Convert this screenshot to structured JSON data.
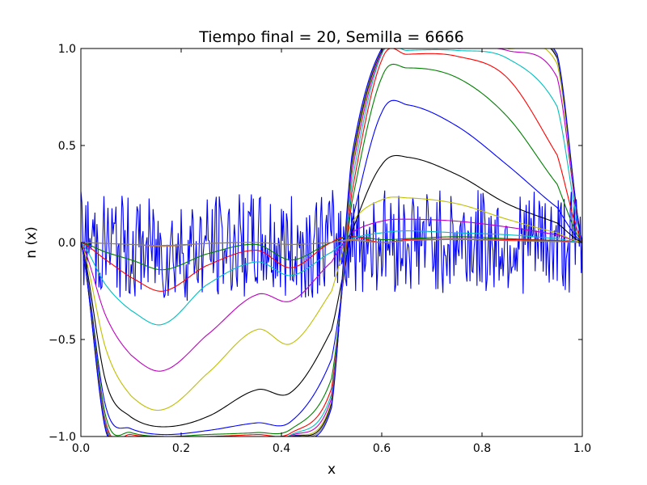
{
  "chart_data": {
    "type": "line",
    "title": "Tiempo final = 20, Semilla = 6666",
    "xlabel": "x",
    "ylabel": "n (x)",
    "xlim": [
      0.0,
      1.0
    ],
    "ylim": [
      -1.0,
      1.0
    ],
    "grid": false,
    "xticks": [
      "0.0",
      "0.2",
      "0.4",
      "0.6",
      "0.8",
      "1.0"
    ],
    "yticks": [
      "−1.0",
      "−0.5",
      "0.0",
      "0.5",
      "1.0"
    ],
    "x": [
      0.0,
      0.05,
      0.1,
      0.165,
      0.25,
      0.35,
      0.42,
      0.5,
      0.54,
      0.6,
      0.65,
      0.75,
      0.85,
      0.95,
      1.0
    ],
    "series": [
      {
        "color": "#0000ff",
        "values": [
          0.0,
          -0.05,
          -0.1,
          -0.15,
          -0.08,
          -0.05,
          -0.1,
          0.0,
          0.02,
          0.05,
          0.04,
          0.02,
          0.01,
          0.0,
          0.0
        ],
        "noisy": true,
        "amplitude": 0.27
      },
      {
        "color": "#008000",
        "values": [
          0.0,
          -0.05,
          -0.09,
          -0.14,
          -0.06,
          -0.01,
          -0.09,
          0.0,
          0.03,
          0.015,
          0.02,
          0.03,
          0.02,
          0.01,
          0.0
        ]
      },
      {
        "color": "#ff0000",
        "values": [
          0.0,
          -0.09,
          -0.18,
          -0.25,
          -0.12,
          -0.04,
          -0.13,
          0.0,
          0.03,
          0.0,
          0.015,
          0.02,
          0.015,
          0.01,
          0.0
        ]
      },
      {
        "color": "#00bfbf",
        "values": [
          0.0,
          -0.22,
          -0.35,
          -0.42,
          -0.22,
          -0.1,
          -0.17,
          -0.05,
          0.02,
          0.05,
          0.06,
          0.05,
          0.04,
          0.02,
          0.0
        ]
      },
      {
        "color": "#bf00bf",
        "values": [
          0.0,
          -0.38,
          -0.58,
          -0.66,
          -0.48,
          -0.27,
          -0.3,
          -0.1,
          0.05,
          0.11,
          0.12,
          0.11,
          0.08,
          0.04,
          0.0
        ]
      },
      {
        "color": "#bfbf00",
        "values": [
          0.0,
          -0.55,
          -0.79,
          -0.86,
          -0.68,
          -0.45,
          -0.52,
          -0.25,
          0.1,
          0.22,
          0.23,
          0.2,
          0.12,
          0.05,
          0.0
        ]
      },
      {
        "color": "#000000",
        "values": [
          0.0,
          -0.72,
          -0.9,
          -0.95,
          -0.9,
          -0.76,
          -0.77,
          -0.45,
          0.05,
          0.4,
          0.44,
          0.35,
          0.2,
          0.1,
          0.0
        ]
      },
      {
        "color": "#0000ff",
        "values": [
          0.0,
          -0.85,
          -0.96,
          -0.99,
          -0.97,
          -0.93,
          -0.92,
          -0.6,
          0.1,
          0.67,
          0.71,
          0.6,
          0.4,
          0.18,
          0.0
        ]
      },
      {
        "color": "#008000",
        "values": [
          0.0,
          -0.9,
          -0.98,
          -1.0,
          -0.99,
          -0.98,
          -0.96,
          -0.7,
          0.2,
          0.85,
          0.9,
          0.85,
          0.65,
          0.3,
          0.0
        ]
      },
      {
        "color": "#ff0000",
        "values": [
          0.0,
          -0.93,
          -0.99,
          -1.0,
          -1.0,
          -0.99,
          -0.98,
          -0.75,
          0.25,
          0.94,
          0.97,
          0.96,
          0.85,
          0.45,
          0.0
        ]
      },
      {
        "color": "#00bfbf",
        "values": [
          0.0,
          -0.94,
          -1.0,
          -1.0,
          -1.0,
          -1.0,
          -0.99,
          -0.78,
          0.3,
          0.97,
          0.99,
          0.99,
          0.95,
          0.7,
          0.0
        ]
      },
      {
        "color": "#bf00bf",
        "values": [
          0.0,
          -0.95,
          -1.0,
          -1.0,
          -1.0,
          -1.0,
          -0.995,
          -0.8,
          0.35,
          0.98,
          1.0,
          1.0,
          0.99,
          0.85,
          0.0
        ]
      },
      {
        "color": "#bfbf00",
        "values": [
          0.0,
          -0.96,
          -1.0,
          -1.0,
          -1.0,
          -1.0,
          -1.0,
          -0.82,
          0.38,
          0.99,
          1.0,
          1.0,
          1.0,
          0.92,
          0.0
        ]
      },
      {
        "color": "#000000",
        "values": [
          0.0,
          -0.965,
          -1.0,
          -1.0,
          -1.0,
          -1.0,
          -1.0,
          -0.83,
          0.4,
          0.99,
          1.0,
          1.0,
          1.0,
          0.95,
          0.0
        ]
      },
      {
        "color": "#808080",
        "values": [
          0.0,
          -0.97,
          -1.0,
          -1.0,
          -1.0,
          -1.0,
          -1.0,
          -0.84,
          0.42,
          0.995,
          1.0,
          1.0,
          1.0,
          0.96,
          0.0
        ]
      },
      {
        "color": "#0000ff",
        "values": [
          0.0,
          -0.975,
          -1.0,
          -1.0,
          -1.0,
          -1.0,
          -1.0,
          -0.85,
          0.44,
          1.0,
          1.0,
          1.0,
          1.0,
          0.97,
          0.0
        ]
      },
      {
        "color": "#bf8040",
        "values": [
          0.0,
          -0.005,
          -0.01,
          -0.02,
          -0.005,
          0.0,
          -0.01,
          0.0,
          0.015,
          0.0,
          0.01,
          0.02,
          0.01,
          0.005,
          0.0
        ]
      },
      {
        "color": "#808080",
        "values": [
          0.0,
          -0.005,
          -0.01,
          -0.015,
          -0.005,
          0.0,
          -0.01,
          0.0,
          0.01,
          0.0,
          0.01,
          0.015,
          0.01,
          0.005,
          0.0
        ]
      }
    ]
  }
}
